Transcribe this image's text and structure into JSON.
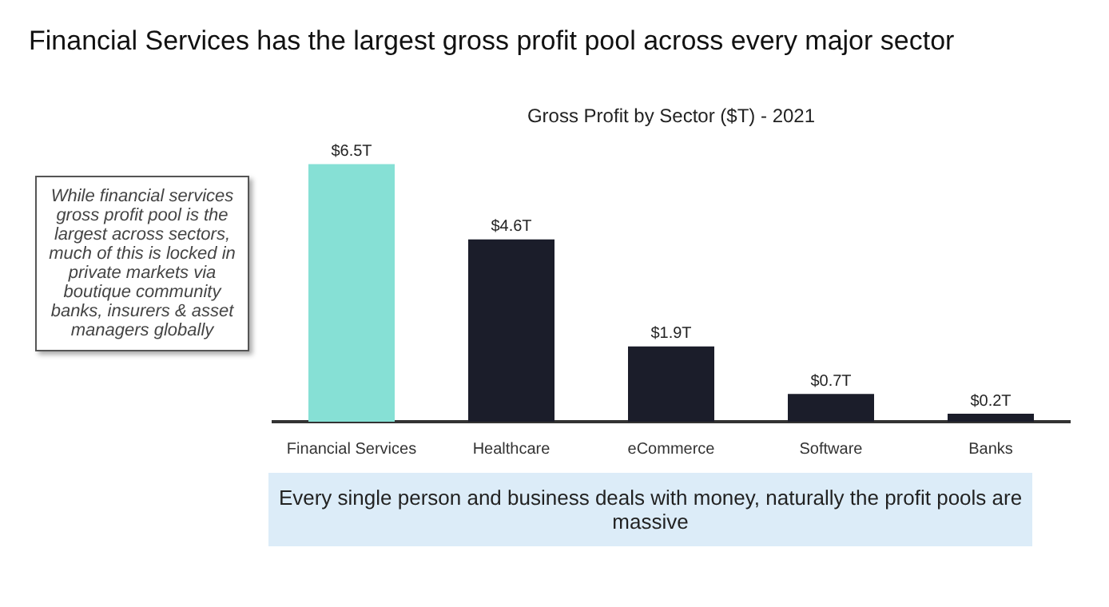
{
  "chart_data": {
    "type": "bar",
    "title": "Financial Services has the largest gross profit pool across every major sector",
    "subtitle": "Gross Profit by Sector ($T) - 2021",
    "categories": [
      "Financial Services",
      "Healthcare",
      "eCommerce",
      "Software",
      "Banks"
    ],
    "values": [
      6.5,
      4.6,
      1.9,
      0.7,
      0.2
    ],
    "colors": [
      "#86e0d5",
      "#1b1d2a",
      "#1b1d2a",
      "#1b1d2a",
      "#1b1d2a"
    ],
    "value_labels": [
      "$6.5T",
      "$4.6T",
      "$1.9T",
      "$0.7T",
      "$0.2T"
    ],
    "annotations": [
      "While financial services gross profit pool is the largest across sectors, much of this is locked in private markets via boutique community banks, insurers & asset managers globally",
      "Every single person and business deals with money, naturally the profit pools are massive"
    ],
    "grid": false,
    "legend": false
  }
}
